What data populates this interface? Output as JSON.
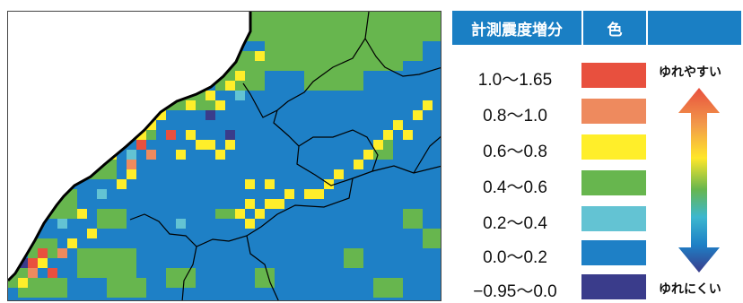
{
  "legend": {
    "header_label": "計測震度増分",
    "header_color": "色",
    "high_label": "ゆれやすい",
    "low_label": "ゆれにくい",
    "rows": [
      {
        "label": "1.0〜1.65",
        "color": "#e8503e"
      },
      {
        "label": "0.8〜1.0",
        "color": "#ee8a5e"
      },
      {
        "label": "0.6〜0.8",
        "color": "#ffee2a"
      },
      {
        "label": "0.4〜0.6",
        "color": "#67b64e"
      },
      {
        "label": "0.2〜0.4",
        "color": "#63c3d3"
      },
      {
        "label": "0.0〜0.2",
        "color": "#1e80c6"
      },
      {
        "label": "−0.95〜0.0",
        "color": "#3a3c8b"
      }
    ]
  },
  "map": {
    "ocean_color": "#ffffff",
    "border_color": "#000000"
  }
}
